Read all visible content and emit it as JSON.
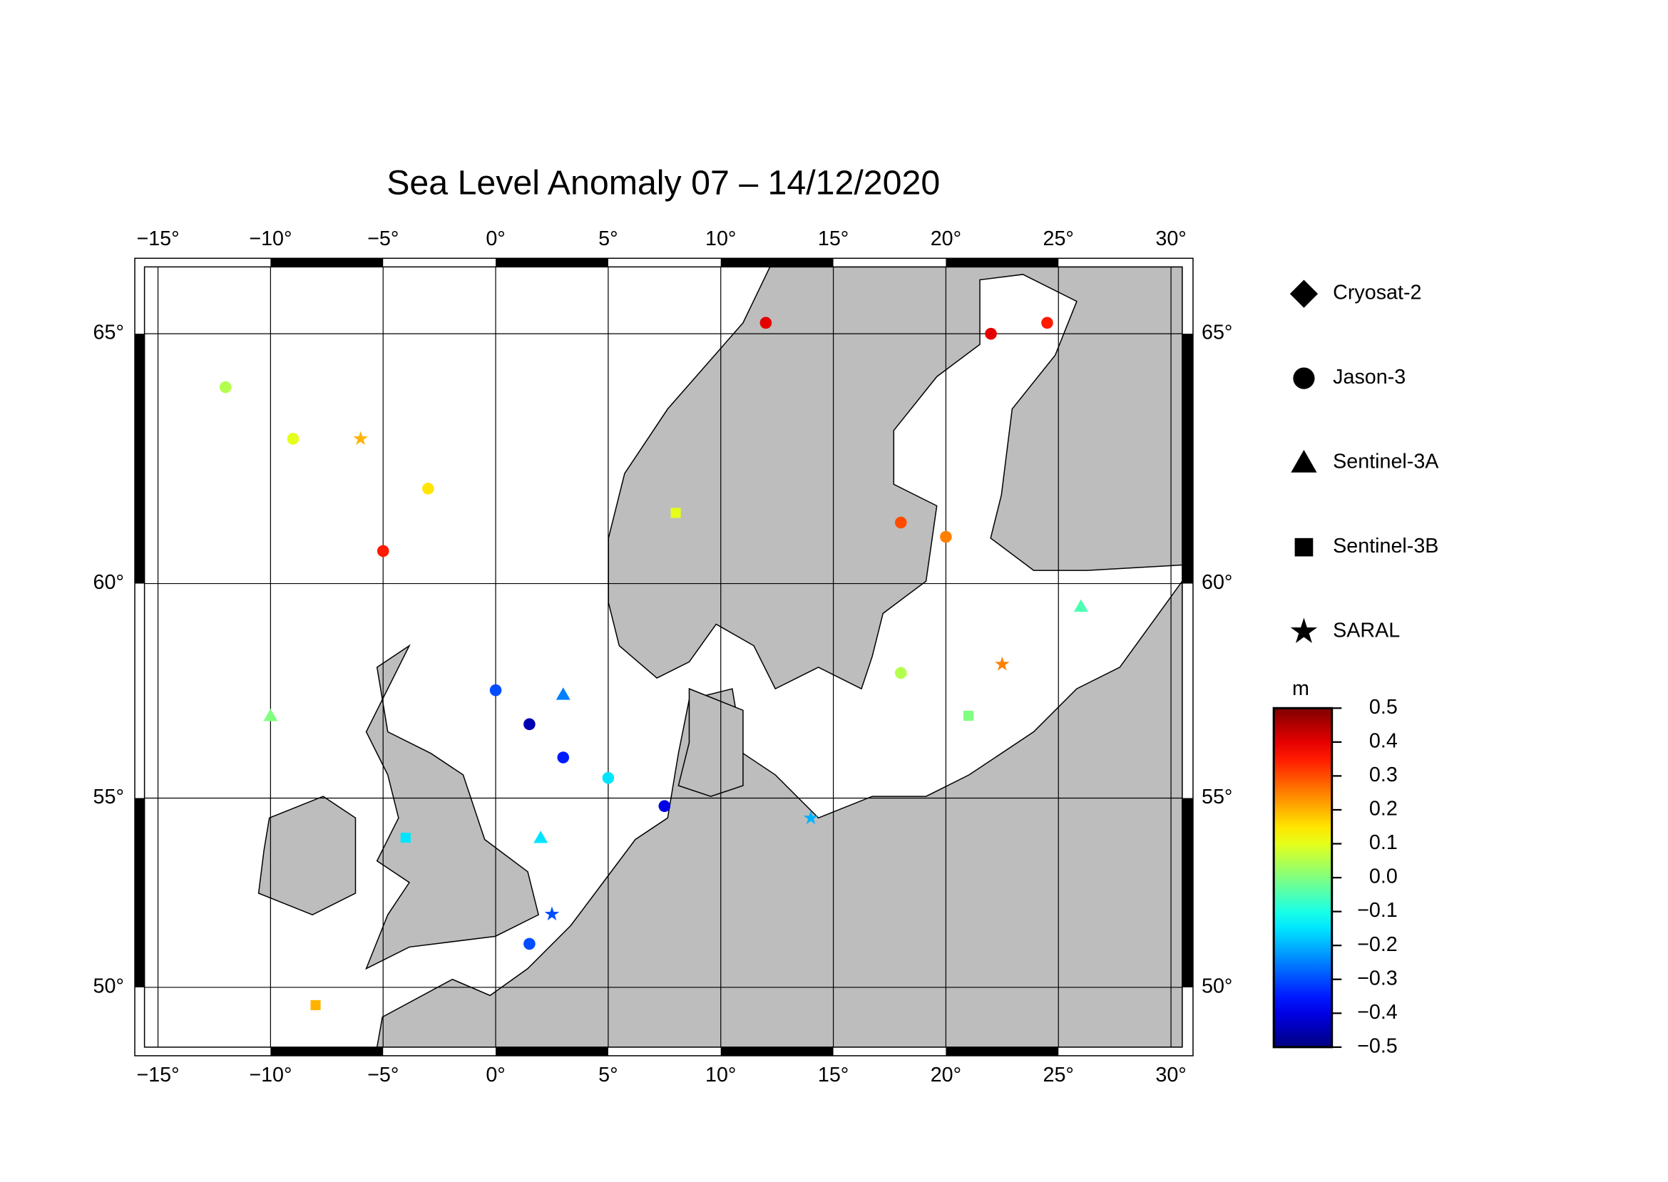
{
  "chart_data": {
    "type": "map",
    "title": "Sea Level Anomaly 07 – 14/12/2020",
    "xlim": [
      -15.6,
      30.5
    ],
    "ylim": [
      48.3,
      66.2
    ],
    "xticks": [
      {
        "value": -15,
        "label": "−15°"
      },
      {
        "value": -10,
        "label": "−10°"
      },
      {
        "value": -5,
        "label": "−5°"
      },
      {
        "value": 0,
        "label": "0°"
      },
      {
        "value": 5,
        "label": "5°"
      },
      {
        "value": 10,
        "label": "10°"
      },
      {
        "value": 15,
        "label": "15°"
      },
      {
        "value": 20,
        "label": "20°"
      },
      {
        "value": 25,
        "label": "25°"
      },
      {
        "value": 30,
        "label": "30°"
      }
    ],
    "yticks": [
      {
        "value": 50,
        "label": "50°"
      },
      {
        "value": 55,
        "label": "55°"
      },
      {
        "value": 60,
        "label": "60°"
      },
      {
        "value": 65,
        "label": "65°"
      }
    ],
    "legend": [
      "Cryosat-2",
      "Jason-3",
      "Sentinel-3A",
      "Sentinel-3B",
      "SARAL"
    ],
    "colorbar": {
      "label": "m",
      "lim": [
        -0.5,
        0.5
      ],
      "ticks": [
        0.5,
        0.4,
        0.3,
        0.2,
        0.1,
        {
          "value": 0,
          "label": "0.0"
        },
        {
          "value": -0.1,
          "label": "−0.1"
        },
        {
          "value": -0.2,
          "label": "−0.2"
        },
        {
          "value": -0.3,
          "label": "−0.3"
        },
        {
          "value": -0.4,
          "label": "−0.4"
        },
        {
          "value": -0.5,
          "label": "−0.5"
        }
      ]
    },
    "points": [
      {
        "mission": 1,
        "lon": -12,
        "lat": 64,
        "value": 0.05
      },
      {
        "mission": 1,
        "lon": -9,
        "lat": 63,
        "value": 0.1
      },
      {
        "mission": 1,
        "lon": -5,
        "lat": 60.7,
        "value": 0.35
      },
      {
        "mission": 1,
        "lon": -3,
        "lat": 62,
        "value": 0.15
      },
      {
        "mission": 1,
        "lon": 0,
        "lat": 57.6,
        "value": -0.3
      },
      {
        "mission": 1,
        "lon": 1.5,
        "lat": 56.8,
        "value": -0.45
      },
      {
        "mission": 1,
        "lon": 3,
        "lat": 56,
        "value": -0.35
      },
      {
        "mission": 1,
        "lon": 5,
        "lat": 55.5,
        "value": -0.15
      },
      {
        "mission": 1,
        "lon": 7.5,
        "lat": 54.8,
        "value": -0.4
      },
      {
        "mission": 1,
        "lon": 12,
        "lat": 65.2,
        "value": 0.4
      },
      {
        "mission": 1,
        "lon": 22,
        "lat": 65,
        "value": 0.4
      },
      {
        "mission": 1,
        "lon": 24.5,
        "lat": 65.2,
        "value": 0.35
      },
      {
        "mission": 1,
        "lon": 20,
        "lat": 61,
        "value": 0.25
      },
      {
        "mission": 1,
        "lon": 18,
        "lat": 61.3,
        "value": 0.3
      },
      {
        "mission": 1,
        "lon": 18,
        "lat": 58,
        "value": 0.05
      },
      {
        "mission": 1,
        "lon": 1.5,
        "lat": 51.2,
        "value": -0.3
      },
      {
        "mission": 2,
        "lon": 2,
        "lat": 54,
        "value": -0.15
      },
      {
        "mission": 2,
        "lon": 3,
        "lat": 57.5,
        "value": -0.25
      },
      {
        "mission": 2,
        "lon": -10,
        "lat": 57,
        "value": 0
      },
      {
        "mission": 2,
        "lon": 26,
        "lat": 59.5,
        "value": -0.05
      },
      {
        "mission": 3,
        "lon": -4,
        "lat": 54,
        "value": -0.15
      },
      {
        "mission": 3,
        "lon": 8,
        "lat": 61.5,
        "value": 0.1
      },
      {
        "mission": 3,
        "lon": 21,
        "lat": 57,
        "value": 0
      },
      {
        "mission": 3,
        "lon": -8,
        "lat": 49.5,
        "value": 0.2
      },
      {
        "mission": 4,
        "lon": 2.5,
        "lat": 52,
        "value": -0.3
      },
      {
        "mission": 4,
        "lon": -6,
        "lat": 63,
        "value": 0.2
      },
      {
        "mission": 4,
        "lon": 22.5,
        "lat": 58.2,
        "value": 0.25
      },
      {
        "mission": 4,
        "lon": 14,
        "lat": 54.5,
        "value": -0.2
      }
    ]
  }
}
